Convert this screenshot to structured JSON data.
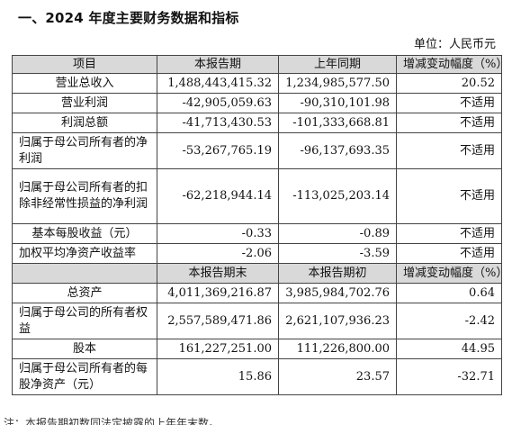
{
  "heading": "一、2024 年度主要财务数据和指标",
  "unit": "单位：人民币元",
  "header1": [
    "项目",
    "本报告期",
    "上年同期",
    "增减变动幅度（%）"
  ],
  "rows1": [
    {
      "label": "营业总收入",
      "current": "1,488,443,415.32",
      "previous": "1,234,985,577.50",
      "change": "20.52"
    },
    {
      "label": "营业利润",
      "current": "-42,905,059.63",
      "previous": "-90,310,101.98",
      "change": "不适用"
    },
    {
      "label": "利润总额",
      "current": "-41,713,430.53",
      "previous": "-101,333,668.81",
      "change": "不适用"
    },
    {
      "label": "归属于母公司所有者的净利润",
      "current": "-53,267,765.19",
      "previous": "-96,137,693.35",
      "change": "不适用"
    },
    {
      "label": "归属于母公司所有者的扣除非经常性损益的净利润",
      "current": "-62,218,944.14",
      "previous": "-113,025,203.14",
      "change": "不适用"
    },
    {
      "label": "基本每股收益（元）",
      "current": "-0.33",
      "previous": "-0.89",
      "change": "不适用"
    },
    {
      "label": "加权平均净资产收益率",
      "current": "-2.06",
      "previous": "-3.59",
      "change": "不适用"
    }
  ],
  "header2": [
    "",
    "本报告期末",
    "本报告期初",
    "增减变动幅度（%）"
  ],
  "rows2": [
    {
      "label": "总资产",
      "current": "4,011,369,216.87",
      "previous": "3,985,984,702.76",
      "change": "0.64"
    },
    {
      "label": "归属于母公司的所有者权益",
      "current": "2,557,589,471.86",
      "previous": "2,621,107,936.23",
      "change": "-2.42"
    },
    {
      "label": "股本",
      "current": "161,227,251.00",
      "previous": "111,226,800.00",
      "change": "44.95"
    },
    {
      "label": "归属于母公司所有者的每股净资产（元）",
      "current": "15.86",
      "previous": "23.57",
      "change": "-32.71"
    }
  ],
  "footer": "注：本报告期初数同法定披露的上年年末数。"
}
